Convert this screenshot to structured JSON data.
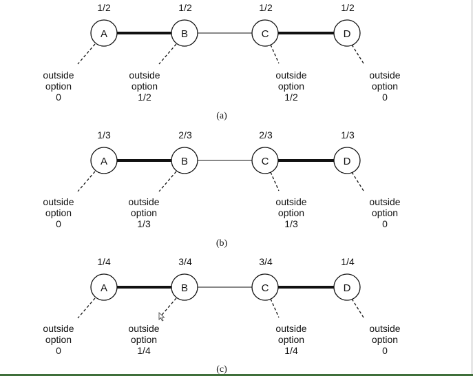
{
  "panels": [
    {
      "caption": "(a)",
      "nodes": [
        {
          "label": "A",
          "value": "1/2",
          "outside": [
            "outside",
            "option",
            "0"
          ]
        },
        {
          "label": "B",
          "value": "1/2",
          "outside": [
            "outside",
            "option",
            "1/2"
          ]
        },
        {
          "label": "C",
          "value": "1/2",
          "outside": [
            "outside",
            "option",
            "1/2"
          ]
        },
        {
          "label": "D",
          "value": "1/2",
          "outside": [
            "outside",
            "option",
            "0"
          ]
        }
      ]
    },
    {
      "caption": "(b)",
      "nodes": [
        {
          "label": "A",
          "value": "1/3",
          "outside": [
            "outside",
            "option",
            "0"
          ]
        },
        {
          "label": "B",
          "value": "2/3",
          "outside": [
            "outside",
            "option",
            "1/3"
          ]
        },
        {
          "label": "C",
          "value": "2/3",
          "outside": [
            "outside",
            "option",
            "1/3"
          ]
        },
        {
          "label": "D",
          "value": "1/3",
          "outside": [
            "outside",
            "option",
            "0"
          ]
        }
      ]
    },
    {
      "caption": "(c)",
      "nodes": [
        {
          "label": "A",
          "value": "1/4",
          "outside": [
            "outside",
            "option",
            "0"
          ]
        },
        {
          "label": "B",
          "value": "3/4",
          "outside": [
            "outside",
            "option",
            "1/4"
          ]
        },
        {
          "label": "C",
          "value": "3/4",
          "outside": [
            "outside",
            "option",
            "1/4"
          ]
        },
        {
          "label": "D",
          "value": "1/4",
          "outside": [
            "outside",
            "option",
            "0"
          ]
        }
      ]
    }
  ]
}
